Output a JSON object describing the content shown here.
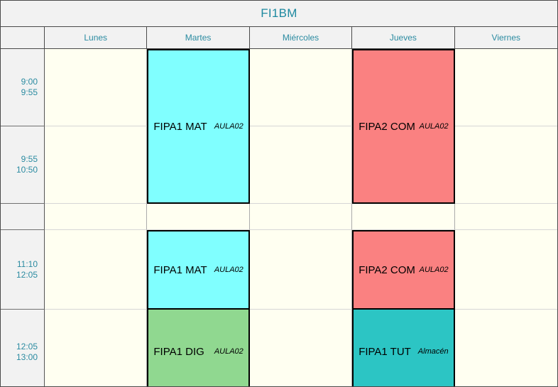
{
  "title": "FI1BM",
  "days": [
    "Lunes",
    "Martes",
    "Miércoles",
    "Jueves",
    "Viernes"
  ],
  "slots": [
    {
      "start": "9:00",
      "end": "9:55"
    },
    {
      "start": "9:55",
      "end": "10:50"
    },
    {
      "start": "",
      "end": ""
    },
    {
      "start": "11:10",
      "end": "12:05"
    },
    {
      "start": "12:05",
      "end": "13:00"
    }
  ],
  "events": [
    {
      "day": "Martes",
      "start": "9:00",
      "end": "10:50",
      "label": "FIPA1 MAT",
      "room": "AULA02",
      "color": "#80ffff"
    },
    {
      "day": "Jueves",
      "start": "9:00",
      "end": "10:50",
      "label": "FIPA2 COM",
      "room": "AULA02",
      "color": "#fa8181"
    },
    {
      "day": "Martes",
      "start": "11:10",
      "end": "12:05",
      "label": "FIPA1 MAT",
      "room": "AULA02",
      "color": "#80ffff"
    },
    {
      "day": "Jueves",
      "start": "11:10",
      "end": "12:05",
      "label": "FIPA2 COM",
      "room": "AULA02",
      "color": "#fa8181"
    },
    {
      "day": "Martes",
      "start": "12:05",
      "end": "13:00",
      "label": "FIPA1 DIG",
      "room": "AULA02",
      "color": "#90d890"
    },
    {
      "day": "Jueves",
      "start": "12:05",
      "end": "13:00",
      "label": "FIPA1 TUT",
      "room": "Almacén",
      "color": "#2cc5c4"
    }
  ],
  "colors": {
    "header_bg": "#f2f2f2",
    "cell_bg": "#fffff1",
    "accent_text": "#2b8ba1",
    "title_text": "#1e89a0",
    "block_border": "#000000"
  }
}
